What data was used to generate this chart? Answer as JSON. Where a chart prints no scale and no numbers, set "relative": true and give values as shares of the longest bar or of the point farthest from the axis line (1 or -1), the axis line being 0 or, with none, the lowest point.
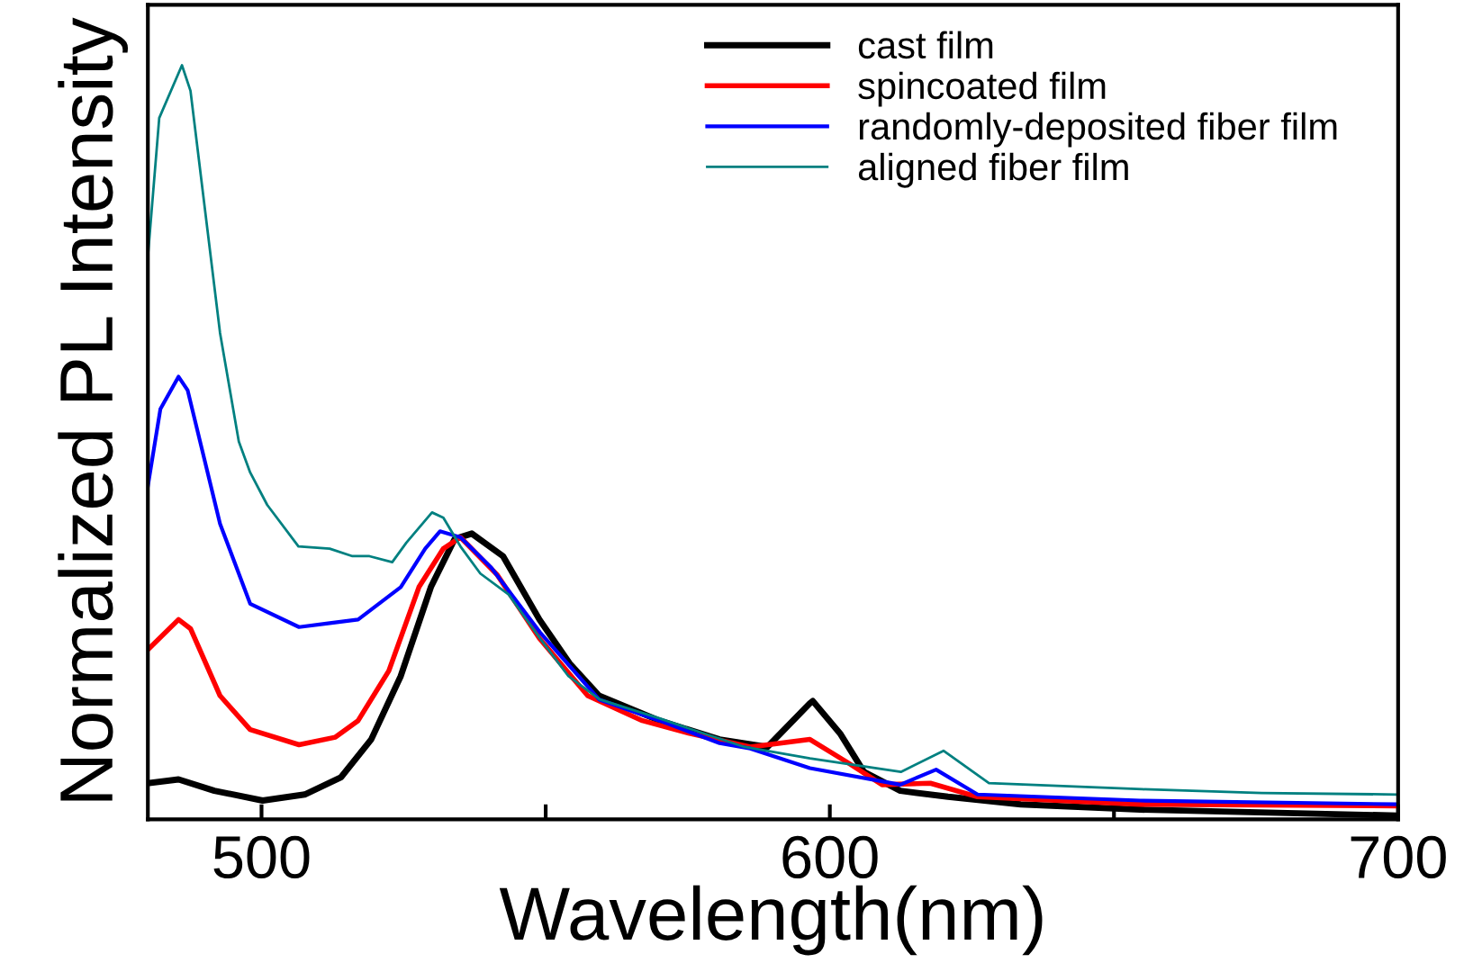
{
  "chart_data": {
    "type": "line",
    "relative": true,
    "xlabel": "Wavelength(nm)",
    "ylabel": "Normalized PL Intensity",
    "xlim": [
      480,
      700
    ],
    "xticks": [
      500,
      {
        "value": 550,
        "label": null
      },
      600,
      {
        "value": 650,
        "label": null
      },
      700
    ],
    "legend": "top",
    "grid": false,
    "marker": "none",
    "line_style": "solid",
    "series": [
      {
        "name": "cast film",
        "color": "#000000",
        "x": [
          480,
          485.4,
          491.7,
          500.2,
          507.6,
          514,
          519.3,
          524.5,
          529.8,
          534,
          537,
          542.5,
          548.9,
          554.2,
          559.4,
          570,
          580.6,
          589,
          596.5,
          597,
          601.8,
          606,
          612.4,
          620.8,
          633.6,
          654.6,
          700
        ],
        "values": [
          0.048,
          0.053,
          0.038,
          0.025,
          0.033,
          0.056,
          0.106,
          0.19,
          0.308,
          0.372,
          0.379,
          0.349,
          0.265,
          0.207,
          0.164,
          0.131,
          0.106,
          0.096,
          0.154,
          0.157,
          0.114,
          0.063,
          0.038,
          0.03,
          0.02,
          0.013,
          0.005
        ]
      },
      {
        "name": "spincoated film",
        "color": "#ff0000",
        "x": [
          480,
          485.4,
          487.5,
          492.7,
          498,
          506.6,
          513,
          517,
          522.4,
          527.7,
          532,
          535,
          541.5,
          548.9,
          557.4,
          567,
          575.3,
          586,
          596.5,
          603,
          609.2,
          617.7,
          626,
          654.6,
          700
        ],
        "values": [
          0.225,
          0.265,
          0.253,
          0.164,
          0.119,
          0.099,
          0.109,
          0.131,
          0.197,
          0.308,
          0.359,
          0.374,
          0.324,
          0.24,
          0.164,
          0.131,
          0.114,
          0.096,
          0.106,
          0.076,
          0.046,
          0.048,
          0.03,
          0.02,
          0.018
        ]
      },
      {
        "name": "randomly-deposited fiber film",
        "color": "#0000ff",
        "x": [
          480,
          482.2,
          485.4,
          487,
          492.7,
          498,
          506.6,
          511.7,
          517,
          524.5,
          528.8,
          531.4,
          535,
          540.4,
          549,
          559.4,
          570,
          580.6,
          586,
          596.5,
          612.4,
          618.7,
          626,
          654.6,
          700
        ],
        "values": [
          0.442,
          0.544,
          0.587,
          0.569,
          0.392,
          0.286,
          0.255,
          0.26,
          0.265,
          0.308,
          0.359,
          0.382,
          0.374,
          0.334,
          0.248,
          0.159,
          0.131,
          0.101,
          0.094,
          0.068,
          0.046,
          0.066,
          0.033,
          0.025,
          0.02
        ]
      },
      {
        "name": "aligned fiber film",
        "color": "#008080",
        "x": [
          480,
          482,
          486,
          487.5,
          492.7,
          496,
          498,
          501,
          506.5,
          512,
          516,
          519,
          523,
          525.5,
          530,
          532,
          535,
          538.5,
          543.5,
          549,
          554,
          559.5,
          570,
          575,
          585,
          596.5,
          612.5,
          620,
          628,
          635,
          655,
          676,
          700
        ],
        "values": [
          0.746,
          0.93,
          1.0,
          0.966,
          0.645,
          0.501,
          0.46,
          0.417,
          0.362,
          0.359,
          0.349,
          0.349,
          0.341,
          0.367,
          0.407,
          0.4,
          0.362,
          0.326,
          0.298,
          0.24,
          0.19,
          0.159,
          0.134,
          0.121,
          0.096,
          0.081,
          0.063,
          0.091,
          0.048,
          0.046,
          0.04,
          0.035,
          0.033
        ]
      }
    ]
  }
}
